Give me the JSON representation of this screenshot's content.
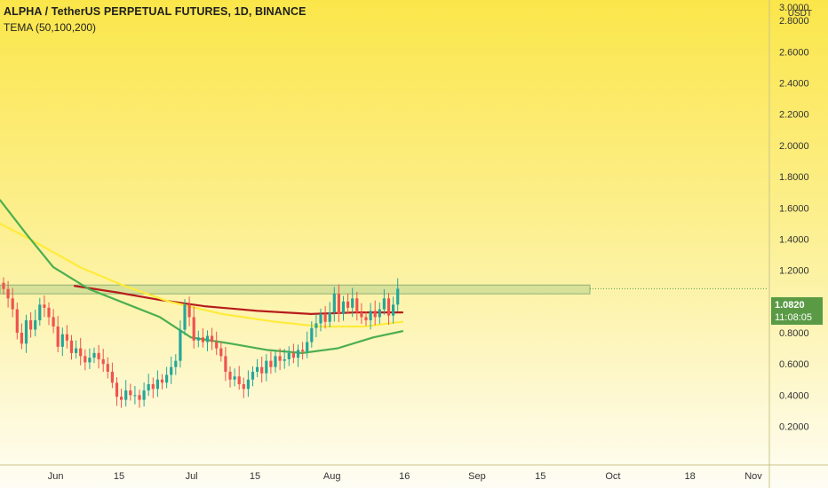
{
  "header": {
    "title": "ALPHA / TetherUS PERPETUAL FUTURES, 1D, BINANCE",
    "indicator": "TEMA (50,100,200)"
  },
  "axis": {
    "currency": "USDT",
    "y_ticks": [
      "3.0000",
      "2.8000",
      "2.6000",
      "2.4000",
      "2.2000",
      "2.0000",
      "1.8000",
      "1.6000",
      "1.4000",
      "1.2000",
      "1.0000",
      "0.8000",
      "0.6000",
      "0.4000",
      "0.2000"
    ],
    "x_ticks": [
      "Jun",
      "15",
      "Jul",
      "15",
      "Aug",
      "16",
      "Sep",
      "15",
      "Oct",
      "18",
      "Nov"
    ]
  },
  "price_tag": {
    "price": "1.0820",
    "countdown": "11:08:05"
  },
  "colors": {
    "candle_up": "#26a69a",
    "candle_down": "#ef5350",
    "tema_50": "#b71c1c",
    "tema_100": "#ffeb3b",
    "tema_200": "#4caf50",
    "zone": "#8bb174"
  },
  "chart_data": {
    "type": "candlestick",
    "symbol": "ALPHA / TetherUS PERPETUAL FUTURES",
    "interval": "1D",
    "exchange": "BINANCE",
    "ylim": [
      0.1,
      3.0
    ],
    "y_scale": "linear",
    "current_price": 1.082,
    "resistance_zone": [
      1.055,
      1.1
    ],
    "closes": [
      1.08,
      1.02,
      0.95,
      0.8,
      0.73,
      0.88,
      0.82,
      0.88,
      0.98,
      0.96,
      0.9,
      0.84,
      0.71,
      0.79,
      0.75,
      0.67,
      0.7,
      0.65,
      0.61,
      0.64,
      0.67,
      0.63,
      0.6,
      0.55,
      0.48,
      0.39,
      0.37,
      0.43,
      0.4,
      0.4,
      0.37,
      0.43,
      0.47,
      0.44,
      0.5,
      0.48,
      0.53,
      0.58,
      0.62,
      0.82,
      0.98,
      0.9,
      0.75,
      0.77,
      0.74,
      0.78,
      0.74,
      0.7,
      0.65,
      0.55,
      0.5,
      0.52,
      0.47,
      0.44,
      0.5,
      0.55,
      0.58,
      0.54,
      0.62,
      0.58,
      0.65,
      0.62,
      0.63,
      0.67,
      0.64,
      0.69,
      0.68,
      0.74,
      0.83,
      0.86,
      0.92,
      0.87,
      0.93,
      1.05,
      0.92,
      1.0,
      0.96,
      1.02,
      0.93,
      0.9,
      0.88,
      0.94,
      0.9,
      0.95,
      1.02,
      0.91,
      0.98,
      1.082
    ],
    "tema": [
      {
        "name": "TEMA 50",
        "color": "#b71c1c",
        "points": [
          [
            84,
            1.1
          ],
          [
            130,
            1.06
          ],
          [
            180,
            1.01
          ],
          [
            230,
            0.97
          ],
          [
            290,
            0.94
          ],
          [
            350,
            0.92
          ],
          [
            400,
            0.93
          ],
          [
            453,
            0.93
          ]
        ]
      },
      {
        "name": "TEMA 100",
        "color": "#ffeb3b",
        "points": [
          [
            0,
            1.5
          ],
          [
            40,
            1.38
          ],
          [
            90,
            1.22
          ],
          [
            140,
            1.1
          ],
          [
            190,
            1.0
          ],
          [
            250,
            0.92
          ],
          [
            310,
            0.87
          ],
          [
            360,
            0.84
          ],
          [
            410,
            0.84
          ],
          [
            453,
            0.87
          ]
        ]
      },
      {
        "name": "TEMA 200",
        "color": "#4caf50",
        "points": [
          [
            0,
            1.65
          ],
          [
            30,
            1.43
          ],
          [
            60,
            1.22
          ],
          [
            100,
            1.08
          ],
          [
            140,
            0.99
          ],
          [
            180,
            0.9
          ],
          [
            215,
            0.77
          ],
          [
            260,
            0.73
          ],
          [
            300,
            0.69
          ],
          [
            340,
            0.67
          ],
          [
            380,
            0.7
          ],
          [
            420,
            0.77
          ],
          [
            453,
            0.81
          ]
        ]
      }
    ],
    "x_tick_positions": [
      {
        "label": "Jun",
        "bar": 6
      },
      {
        "label": "15",
        "bar": 20
      },
      {
        "label": "Jul",
        "bar": 36
      },
      {
        "label": "15",
        "bar": 50
      },
      {
        "label": "Aug",
        "bar": 67
      },
      {
        "label": "16",
        "bar": 83
      },
      {
        "label": "Sep",
        "bar": 99
      },
      {
        "label": "15",
        "bar": 113
      },
      {
        "label": "Oct",
        "bar": 129
      },
      {
        "label": "18",
        "bar": 146
      },
      {
        "label": "Nov",
        "bar": 160
      }
    ]
  }
}
